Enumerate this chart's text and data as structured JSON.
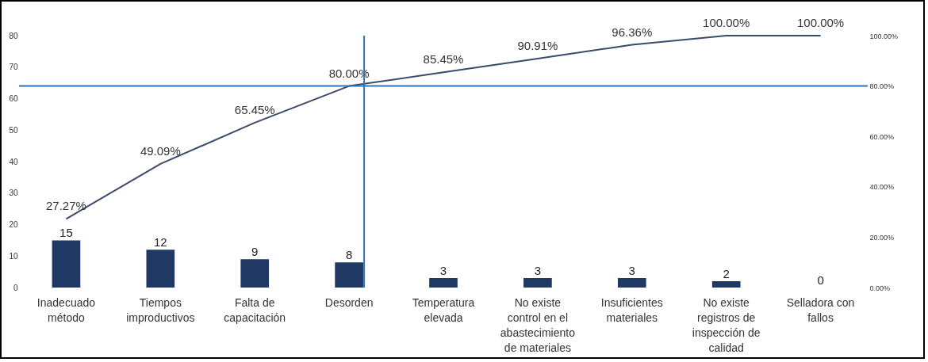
{
  "chart_data": {
    "type": "bar",
    "categories": [
      "Inadecuado método",
      "Tiempos improductivos",
      "Falta de capacitación",
      "Desorden",
      "Temperatura elevada",
      "No existe control en el abastecimiento de materiales",
      "Insuficientes materiales",
      "No existe registros de inspección de calidad",
      "Selladora con fallos"
    ],
    "series": [
      {
        "type": "bar",
        "color": "#203864",
        "values": [
          15,
          12,
          9,
          8,
          3,
          3,
          3,
          2,
          0
        ],
        "value_labels": [
          "15",
          "12",
          "9",
          "8",
          "3",
          "3",
          "3",
          "2",
          "0"
        ]
      },
      {
        "type": "line",
        "axis": "y2",
        "color": "#3b4a6b",
        "values": [
          27.27,
          49.09,
          65.45,
          80.0,
          85.45,
          90.91,
          96.36,
          100.0,
          100.0
        ],
        "value_labels": [
          "27.27%",
          "49.09%",
          "65.45%",
          "80.00%",
          "85.45%",
          "90.91%",
          "96.36%",
          "100.00%",
          "100.00%"
        ]
      }
    ],
    "ylim": [
      0,
      80
    ],
    "yticks": [
      0,
      10,
      20,
      30,
      40,
      50,
      60,
      70,
      80
    ],
    "y2lim": [
      0,
      100
    ],
    "y2ticks": [
      {
        "value": 0,
        "label": "0.00%"
      },
      {
        "value": 20,
        "label": "20.00%"
      },
      {
        "value": 40,
        "label": "40.00%"
      },
      {
        "value": 60,
        "label": "60.00%"
      },
      {
        "value": 80,
        "label": "80.00%"
      },
      {
        "value": 100,
        "label": "100.00%"
      }
    ],
    "ref_lines": [
      {
        "axis": "y2",
        "value": 80,
        "color": "#2e75b6"
      },
      {
        "axis": "x",
        "value": "Desorden",
        "color": "#2e75b6"
      }
    ]
  }
}
